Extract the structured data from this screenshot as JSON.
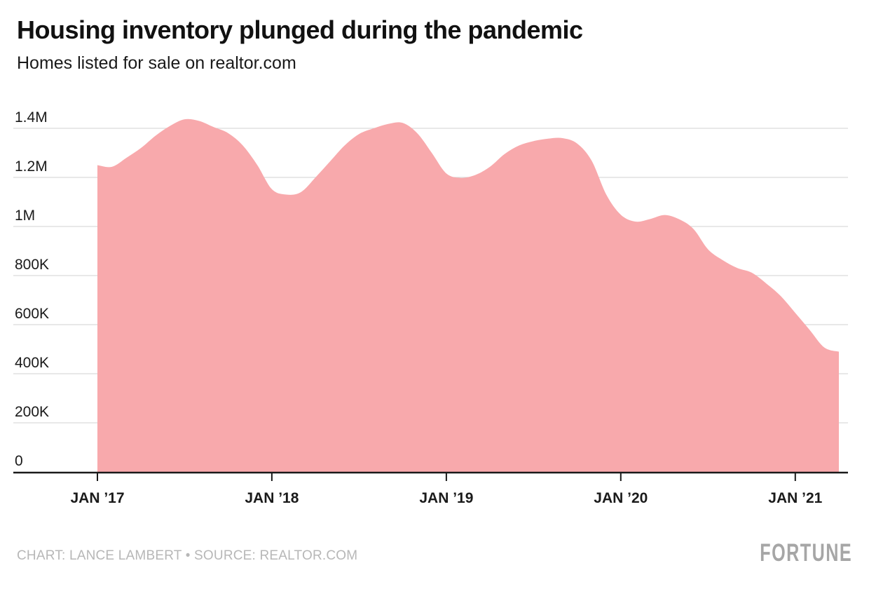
{
  "header": {
    "title": "Housing inventory plunged during the pandemic",
    "subtitle": "Homes listed for sale on realtor.com"
  },
  "footer": {
    "credit": "CHART: LANCE LAMBERT • SOURCE: REALTOR.COM",
    "brand": "FORTUNE"
  },
  "chart_data": {
    "type": "area",
    "title": "Housing inventory plunged during the pandemic",
    "subtitle": "Homes listed for sale on realtor.com",
    "series_name": "Homes listed for sale on realtor.com",
    "grid": true,
    "legend": "none",
    "ylim": [
      0,
      1450000
    ],
    "x": [
      "Jan 2017",
      "Feb 2017",
      "Mar 2017",
      "Apr 2017",
      "May 2017",
      "Jun 2017",
      "Jul 2017",
      "Aug 2017",
      "Sep 2017",
      "Oct 2017",
      "Nov 2017",
      "Dec 2017",
      "Jan 2018",
      "Feb 2018",
      "Mar 2018",
      "Apr 2018",
      "May 2018",
      "Jun 2018",
      "Jul 2018",
      "Aug 2018",
      "Sep 2018",
      "Oct 2018",
      "Nov 2018",
      "Dec 2018",
      "Jan 2019",
      "Feb 2019",
      "Mar 2019",
      "Apr 2019",
      "May 2019",
      "Jun 2019",
      "Jul 2019",
      "Aug 2019",
      "Sep 2019",
      "Oct 2019",
      "Nov 2019",
      "Dec 2019",
      "Jan 2020",
      "Feb 2020",
      "Mar 2020",
      "Apr 2020",
      "May 2020",
      "Jun 2020",
      "Jul 2020",
      "Aug 2020",
      "Sep 2020",
      "Oct 2020",
      "Nov 2020",
      "Dec 2020",
      "Jan 2021",
      "Feb 2021",
      "Mar 2021",
      "Apr 2021"
    ],
    "values": [
      1250000,
      1243000,
      1280000,
      1320000,
      1370000,
      1410000,
      1437000,
      1430000,
      1405000,
      1380000,
      1330000,
      1250000,
      1152000,
      1130000,
      1140000,
      1200000,
      1265000,
      1330000,
      1377000,
      1400000,
      1418000,
      1422000,
      1380000,
      1300000,
      1216000,
      1198000,
      1210000,
      1243000,
      1295000,
      1330000,
      1348000,
      1358000,
      1360000,
      1338000,
      1268000,
      1130000,
      1048000,
      1020000,
      1030000,
      1047000,
      1030000,
      990000,
      907000,
      863000,
      831000,
      812000,
      768000,
      717000,
      648000,
      578000,
      507000,
      490000
    ],
    "y_axis": {
      "ticks": [
        {
          "label": "1.4M",
          "value": 1400000
        },
        {
          "label": "1.2M",
          "value": 1200000
        },
        {
          "label": "1M",
          "value": 1000000
        },
        {
          "label": "800K",
          "value": 800000
        },
        {
          "label": "600K",
          "value": 600000
        },
        {
          "label": "400K",
          "value": 400000
        },
        {
          "label": "200K",
          "value": 200000
        },
        {
          "label": "0",
          "value": 0
        }
      ]
    },
    "x_axis": {
      "ticks": [
        {
          "label": "JAN ’17",
          "index": 0
        },
        {
          "label": "JAN ’18",
          "index": 12
        },
        {
          "label": "JAN ’19",
          "index": 24
        },
        {
          "label": "JAN ’20",
          "index": 36
        },
        {
          "label": "JAN ’21",
          "index": 48
        }
      ]
    },
    "colors": {
      "area": "#f8a9ac",
      "grid": "#d9d9d9",
      "axis": "#1a1a1a",
      "tick_label": "#1a1a1a",
      "title": "#111111",
      "subtitle": "#1a1a1a",
      "credit": "#b7b7b7",
      "brand": "#a6a6a6"
    }
  }
}
